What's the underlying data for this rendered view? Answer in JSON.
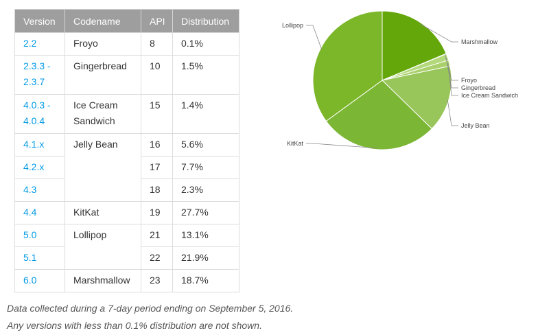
{
  "table": {
    "headers": [
      "Version",
      "Codename",
      "API",
      "Distribution"
    ],
    "rows": [
      {
        "version": "2.2",
        "codename": "Froyo",
        "api": "8",
        "distribution": "0.1%"
      },
      {
        "version": "2.3.3 -\n2.3.7",
        "codename": "Gingerbread",
        "api": "10",
        "distribution": "1.5%"
      },
      {
        "version": "4.0.3 -\n4.0.4",
        "codename": "Ice Cream\nSandwich",
        "api": "15",
        "distribution": "1.4%"
      },
      {
        "version": "4.1.x",
        "codename": "Jelly Bean",
        "api": "16",
        "distribution": "5.6%"
      },
      {
        "version": "4.2.x",
        "codename": "",
        "api": "17",
        "distribution": "7.7%"
      },
      {
        "version": "4.3",
        "codename": "",
        "api": "18",
        "distribution": "2.3%"
      },
      {
        "version": "4.4",
        "codename": "KitKat",
        "api": "19",
        "distribution": "27.7%"
      },
      {
        "version": "5.0",
        "codename": "Lollipop",
        "api": "21",
        "distribution": "13.1%"
      },
      {
        "version": "5.1",
        "codename": "",
        "api": "22",
        "distribution": "21.9%"
      },
      {
        "version": "6.0",
        "codename": "Marshmallow",
        "api": "23",
        "distribution": "18.7%"
      }
    ]
  },
  "captions": {
    "line1": "Data collected during a 7-day period ending on September 5, 2016.",
    "line2": "Any versions with less than 0.1% distribution are not shown."
  },
  "chart_data": {
    "type": "pie",
    "start_angle_deg": 90,
    "direction": "clockwise",
    "slices": [
      {
        "label": "Marshmallow",
        "value": 18.7,
        "color": "#64a70b"
      },
      {
        "label": "Froyo",
        "value": 0.1,
        "color": "#b7dc7c"
      },
      {
        "label": "Gingerbread",
        "value": 1.5,
        "color": "#b3d97a"
      },
      {
        "label": "Ice Cream Sandwich",
        "value": 1.4,
        "color": "#a9d06b"
      },
      {
        "label": "Jelly Bean",
        "value": 15.6,
        "color": "#98c65a"
      },
      {
        "label": "KitKat",
        "value": 27.7,
        "color": "#7cb635"
      },
      {
        "label": "Lollipop",
        "value": 35.0,
        "color": "#7cb72a"
      }
    ]
  }
}
